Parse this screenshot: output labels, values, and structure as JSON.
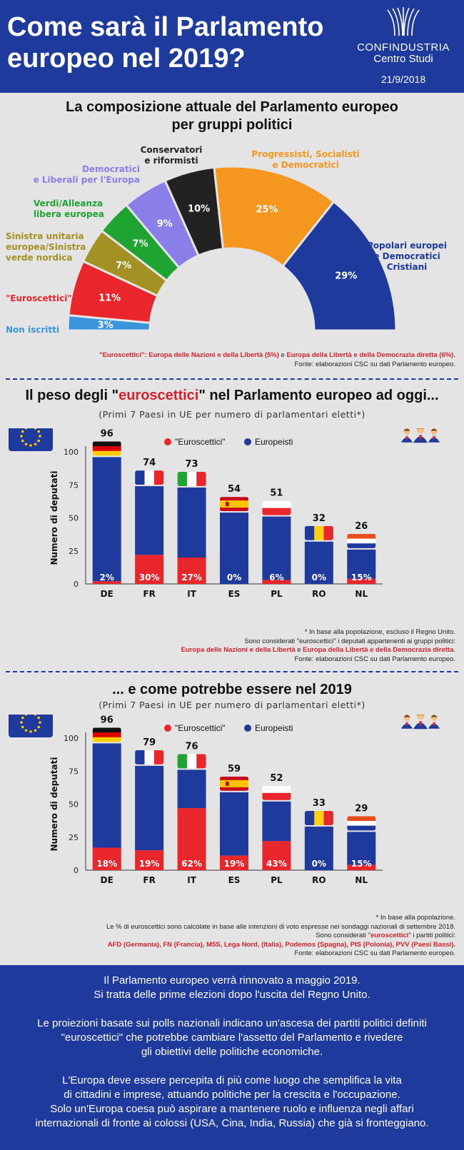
{
  "header": {
    "title_line1": "Come sarà il Parlamento",
    "title_line2": "europeo nel 2019?",
    "brand_name": "CONFINDUSTRIA",
    "brand_sub": "Centro Studi",
    "date": "21/9/2018"
  },
  "section1": {
    "title_line1": "La composizione attuale del Parlamento europeo",
    "title_line2": "per gruppi politici",
    "note_red1": "\"Euroscettici\": Europa delle Nazioni e della Libertà (5%)",
    "note_and": " e ",
    "note_red2": "Europa della Libertà e della Democrazia diretta (6%).",
    "note_source": "Fonte: elaborazioni CSC su dati Parlamento europeo."
  },
  "chart_data": [
    {
      "type": "pie",
      "title": "La composizione attuale del Parlamento europeo per gruppi politici",
      "slices": [
        {
          "label": "Non iscritti",
          "value": 3,
          "pct": "3%",
          "color": "#3a95dd"
        },
        {
          "label": "\"Euroscettici\"",
          "value": 11,
          "pct": "11%",
          "color": "#e8262c"
        },
        {
          "label": "Sinistra unitaria europea/Sinistra verde nordica",
          "value": 7,
          "pct": "7%",
          "color": "#a39124"
        },
        {
          "label": "Verdi/Alleanza libera europea",
          "value": 7,
          "pct": "7%",
          "color": "#1fa331"
        },
        {
          "label": "Democratici e Liberali per l'Europa",
          "value": 9,
          "pct": "9%",
          "color": "#8a7fe9"
        },
        {
          "label": "Conservatori e riformisti",
          "value": 10,
          "pct": "10%",
          "color": "#222222"
        },
        {
          "label": "Progressisti, Socialisti e Democratici",
          "value": 25,
          "pct": "25%",
          "color": "#f5961f"
        },
        {
          "label": "Popolari europei e Democratici Cristiani",
          "value": 29,
          "pct": "29%",
          "color": "#1d3a9c"
        }
      ]
    },
    {
      "type": "bar",
      "title": "Il peso degli \"euroscettici\" nel Parlamento europeo ad oggi...",
      "subtitle": "(Primi 7 Paesi in UE per numero di parlamentari eletti*)",
      "ylabel": "Numero di deputati",
      "ylim": [
        0,
        100
      ],
      "yticks": [
        "0",
        "25",
        "50",
        "75",
        "100"
      ],
      "categories": [
        "DE",
        "FR",
        "IT",
        "ES",
        "PL",
        "RO",
        "NL"
      ],
      "totals": [
        96,
        74,
        73,
        54,
        51,
        32,
        26
      ],
      "euro_pct": [
        "2%",
        "30%",
        "27%",
        "0%",
        "6%",
        "0%",
        "15%"
      ],
      "series": [
        {
          "name": "\"Euroscettici\"",
          "values": [
            2,
            22,
            20,
            0,
            3,
            0,
            4
          ]
        },
        {
          "name": "Europeisti",
          "values": [
            94,
            52,
            53,
            54,
            48,
            32,
            22
          ]
        }
      ]
    },
    {
      "type": "bar",
      "title": "... e come potrebbe essere nel 2019",
      "subtitle": "(Primi 7 Paesi in UE per numero di parlamentari eletti*)",
      "ylabel": "Numero di deputati",
      "ylim": [
        0,
        100
      ],
      "yticks": [
        "0",
        "25",
        "50",
        "75",
        "100"
      ],
      "categories": [
        "DE",
        "FR",
        "IT",
        "ES",
        "PL",
        "RO",
        "NL"
      ],
      "totals": [
        96,
        79,
        76,
        59,
        52,
        33,
        29
      ],
      "euro_pct": [
        "18%",
        "19%",
        "62%",
        "19%",
        "43%",
        "0%",
        "15%"
      ],
      "series": [
        {
          "name": "\"Euroscettici\"",
          "values": [
            17,
            15,
            47,
            11,
            22,
            0,
            4
          ]
        },
        {
          "name": "Europeisti",
          "values": [
            79,
            64,
            29,
            48,
            30,
            33,
            25
          ]
        }
      ]
    }
  ],
  "section2": {
    "title_a": "Il peso degli \"",
    "title_red": "euroscettici",
    "title_b": "\" nel Parlamento europeo ad oggi...",
    "subtitle": "(Primi 7 Paesi in UE per numero di parlamentari eletti*)",
    "legend_euro": "\"Euroscettici\"",
    "legend_pro": "Europeisti",
    "note1": "* In base alla popolazione, escluso il Regno Unito.",
    "note2": "Sono considerati \"euroscettici\" i deputati appartenenti ai gruppi politici:",
    "note3_red1": "Europa delle Nazioni e della Libertà",
    "note3_and": " e ",
    "note3_red2": "Europa della Libertà e della Democrazia diretta",
    "note3_end": ".",
    "note4": "Fonte: elaborazioni CSC su dati Parlamento europeo."
  },
  "section3": {
    "title": "... e come potrebbe essere nel 2019",
    "subtitle": "(Primi 7 Paesi in UE per numero di parlamentari eletti*)",
    "legend_euro": "\"Euroscettici\"",
    "legend_pro": "Europeisti",
    "note1": "* In base alla popolazione.",
    "note2": "Le % di euroscettici sono calcolate in base alle intenzioni di voto espresse nei sondaggi nazionali di settembre 2018.",
    "note3a": "Sono considerati \"",
    "note3red": "euroscettici",
    "note3b": "\" i partiti politici:",
    "note4_red": "AFD (Germania), FN (Francia), M5S, Lega Nord, (Italia), Podemos (Spagna), PIS (Polonia), PVV (Paesi Bassi).",
    "note5": "Fonte: elaborazioni CSC su dati Parlamento europeo."
  },
  "footer": {
    "p1_line1": "Il Parlamento europeo verrà rinnovato a maggio 2019.",
    "p1_line2": "Si tratta delle prime elezioni dopo l'uscita del Regno Unito.",
    "p2_line1": "Le proiezioni basate sui polls nazionali indicano un'ascesa dei partiti politici definiti",
    "p2_line2": "\"euroscettici\" che potrebbe cambiare l'assetto del Parlamento e rivedere",
    "p2_line3": "gli obiettivi delle politiche economiche.",
    "p3_line1": "L'Europa deve essere percepita di più come luogo che semplifica la vita",
    "p3_line2": "di cittadini e imprese, attuando politiche per la crescita e l'occupazione.",
    "p3_line3": "Solo un'Europa coesa può aspirare a mantenere ruolo e influenza negli affari",
    "p3_line4": "internazionali di fronte ai colossi (USA, Cina, India, Russia) che già si fronteggiano."
  },
  "colors": {
    "blue": "#1d3a9c",
    "red": "#e8262c",
    "background": "#e4e4e4"
  },
  "icons": [
    "confindustria-logo-icon",
    "eu-flag-icon",
    "people-group-icon",
    "country-flag-icon"
  ]
}
